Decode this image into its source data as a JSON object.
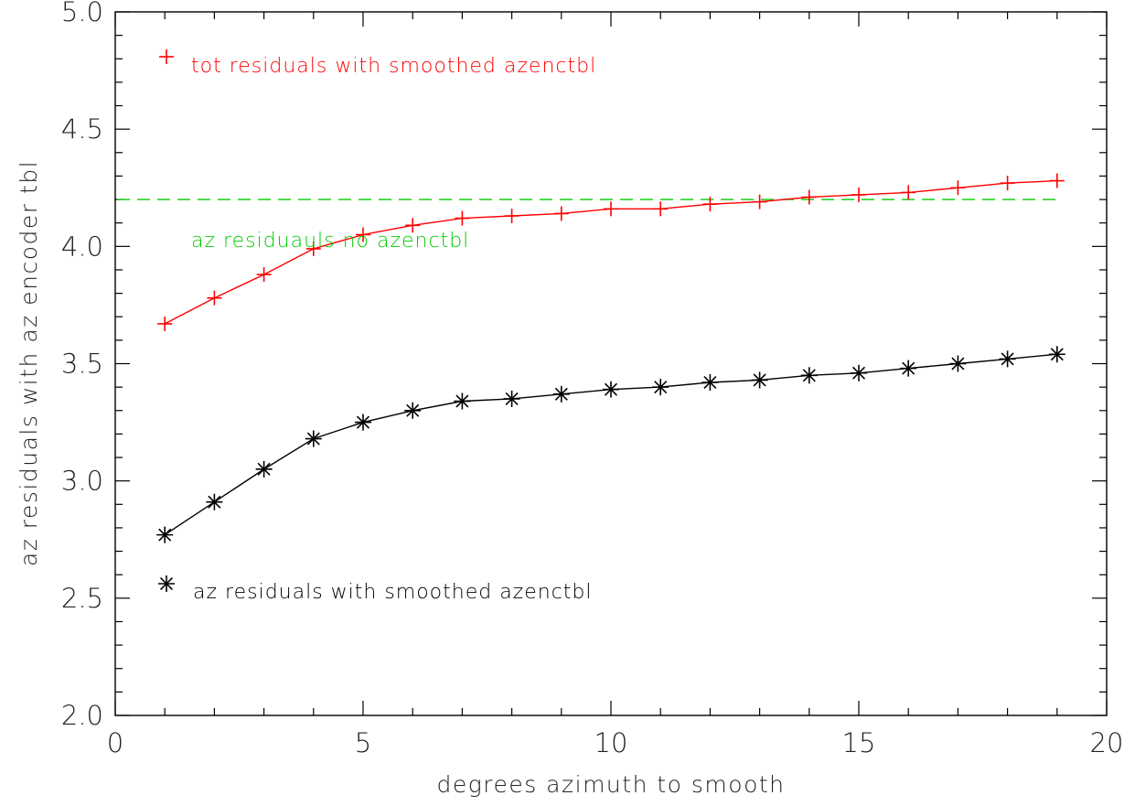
{
  "chart_data": {
    "type": "line",
    "xlabel": "degrees azimuth to smooth",
    "ylabel": "az residuals with az encoder tbl",
    "xlim": [
      0,
      20
    ],
    "ylim": [
      2.0,
      5.0
    ],
    "x_ticks": [
      "0",
      "5",
      "10",
      "15",
      "20"
    ],
    "y_ticks": [
      "2.0",
      "2.5",
      "3.0",
      "3.5",
      "4.0",
      "4.5",
      "5.0"
    ],
    "grid": false,
    "x": [
      1,
      2,
      3,
      4,
      5,
      6,
      7,
      8,
      9,
      10,
      11,
      12,
      13,
      14,
      15,
      16,
      17,
      18,
      19
    ],
    "series": [
      {
        "name": "tot residuals with smoothed azenctbl",
        "color": "#ff0000",
        "marker": "plus",
        "values": [
          3.67,
          3.78,
          3.88,
          3.99,
          4.05,
          4.09,
          4.12,
          4.13,
          4.14,
          4.16,
          4.16,
          4.18,
          4.19,
          4.21,
          4.22,
          4.23,
          4.25,
          4.27,
          4.28
        ]
      },
      {
        "name": "az  residuals with smoothed azenctbl",
        "color": "#000000",
        "marker": "asterisk",
        "values": [
          2.77,
          2.91,
          3.05,
          3.18,
          3.25,
          3.3,
          3.34,
          3.35,
          3.37,
          3.39,
          3.4,
          3.42,
          3.43,
          3.45,
          3.46,
          3.48,
          3.5,
          3.52,
          3.54
        ]
      }
    ],
    "reference_line": {
      "name": "az  residuauls no azenctbl",
      "color": "#00cc00",
      "style": "dashed",
      "y": 4.2,
      "x_range": [
        0,
        19
      ]
    },
    "legend": {
      "placement": "inside-plot, annotated at points"
    }
  }
}
